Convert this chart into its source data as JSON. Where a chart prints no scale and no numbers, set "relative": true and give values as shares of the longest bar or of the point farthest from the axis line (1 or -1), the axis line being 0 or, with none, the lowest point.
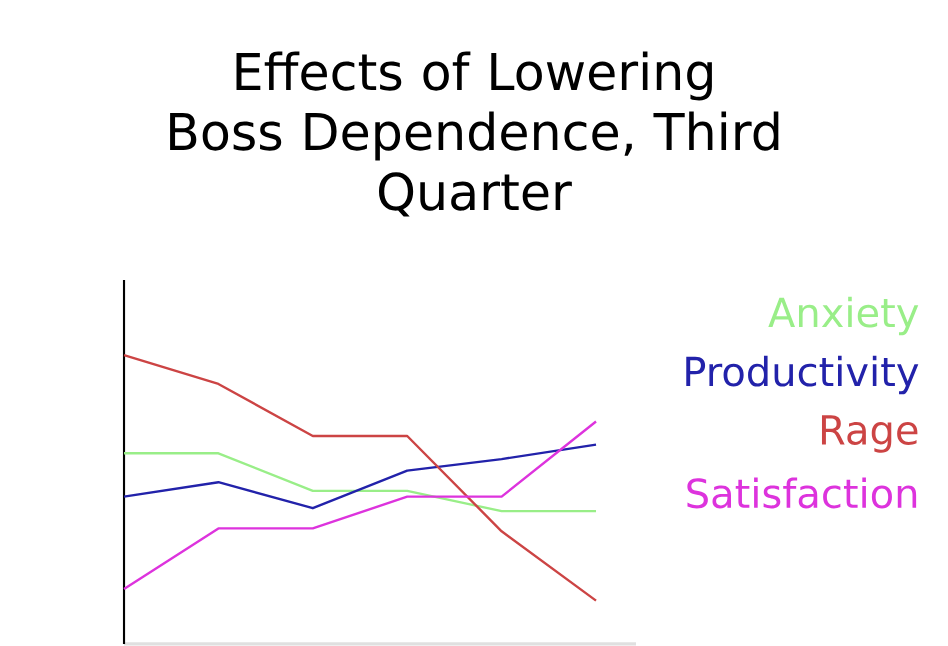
{
  "chart_data": {
    "type": "line",
    "title": "Effects of Lowering Boss Dependence, Third Quarter",
    "relative": true,
    "categories": [
      null,
      null,
      null,
      null,
      null,
      null
    ],
    "series": [
      {
        "name": "Anxiety",
        "color": "#99ee88",
        "values": [
          0.66,
          0.66,
          0.53,
          0.53,
          0.46,
          0.46
        ]
      },
      {
        "name": "Productivity",
        "color": "#2222aa",
        "values": [
          0.51,
          0.56,
          0.47,
          0.6,
          0.64,
          0.69
        ]
      },
      {
        "name": "Rage",
        "color": "#cc4444",
        "values": [
          1,
          0.9,
          0.72,
          0.72,
          0.39,
          0.15
        ]
      },
      {
        "name": "Satisfaction",
        "color": "#dd33dd",
        "values": [
          0.19,
          0.4,
          0.4,
          0.51,
          0.51,
          0.77
        ]
      }
    ]
  }
}
